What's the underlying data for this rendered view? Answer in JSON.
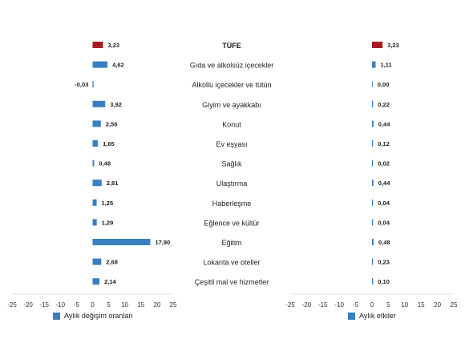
{
  "colors": {
    "headline": "#a51c24",
    "bar": "#3a7fbf",
    "axis_text": "#333333",
    "category_text": "#222222"
  },
  "categories": [
    "TÜFE",
    "Gıda ve alkolsüz içecekler",
    "Alkollü içecekler ve tütün",
    "Giyim ve ayakkabı",
    "Konut",
    "Ev eşyası",
    "Sağlık",
    "Ulaştırma",
    "Haberleşme",
    "Eğlence ve kültür",
    "Eğitim",
    "Lokanta ve oteller",
    "Çeşitli mal ve hizmetler"
  ],
  "chart_data": [
    {
      "type": "bar",
      "orientation": "horizontal",
      "legend": "Aylık değişim oranları",
      "legend_position": "bottom-left",
      "xlim": [
        -25,
        25
      ],
      "xticks": [
        -25,
        -20,
        -15,
        -10,
        -5,
        0,
        5,
        10,
        15,
        20,
        25
      ],
      "values": [
        3.23,
        4.62,
        -0.03,
        3.92,
        2.56,
        1.65,
        0.48,
        2.81,
        1.25,
        1.29,
        17.9,
        2.68,
        2.14
      ],
      "labels": [
        "3,23",
        "4,62",
        "-0,03",
        "3,92",
        "2,56",
        "1,65",
        "0,48",
        "2,81",
        "1,25",
        "1,29",
        "17,90",
        "2,68",
        "2,14"
      ],
      "grid": false
    },
    {
      "type": "bar",
      "orientation": "horizontal",
      "legend": "Aylık etkiler",
      "legend_position": "bottom-left",
      "xlim": [
        -25,
        25
      ],
      "xticks": [
        -25,
        -20,
        -15,
        -10,
        -5,
        0,
        5,
        10,
        15,
        20,
        25
      ],
      "values": [
        3.23,
        1.11,
        0.0,
        0.22,
        0.44,
        0.12,
        0.02,
        0.44,
        0.04,
        0.04,
        0.48,
        0.23,
        0.1
      ],
      "labels": [
        "3,23",
        "1,11",
        "0,00",
        "0,22",
        "0,44",
        "0,12",
        "0,02",
        "0,44",
        "0,04",
        "0,04",
        "0,48",
        "0,23",
        "0,10"
      ],
      "grid": false
    }
  ]
}
